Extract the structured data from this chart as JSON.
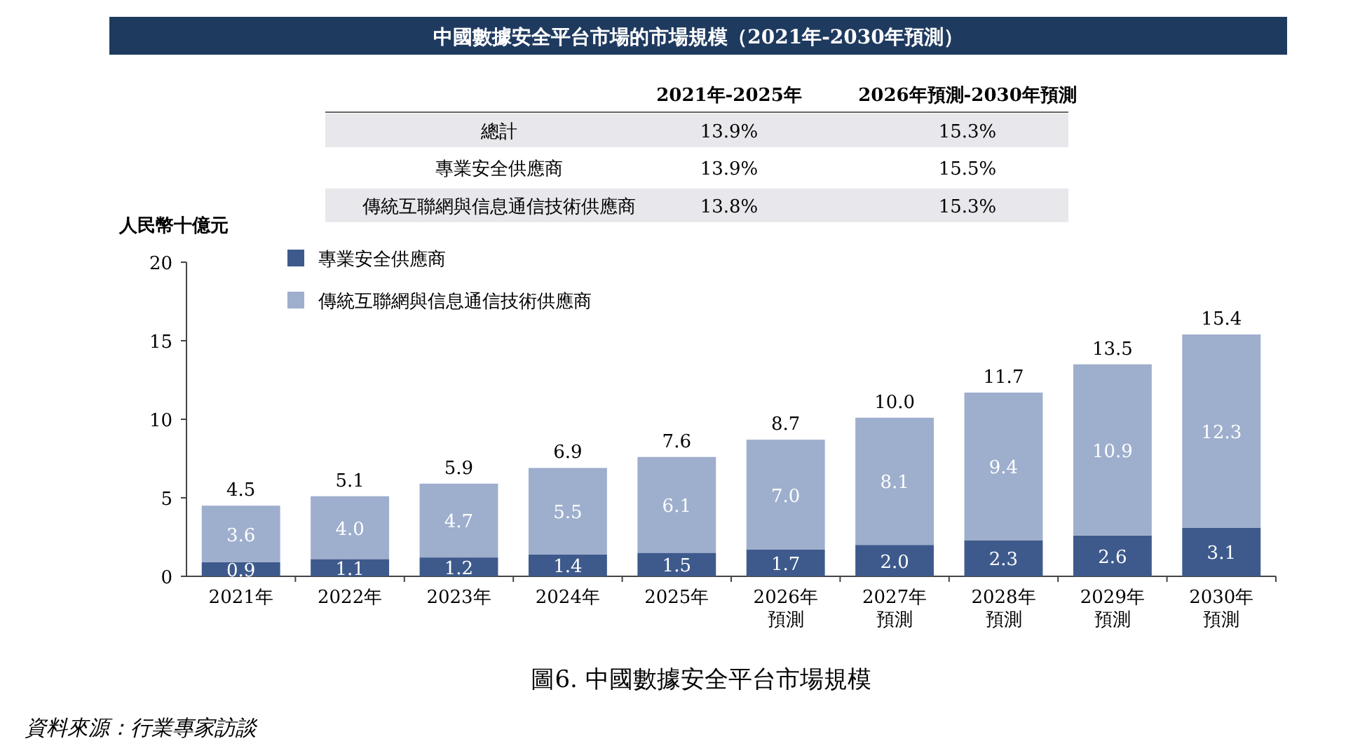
{
  "chart_data": {
    "type": "bar",
    "title": "中國數據安全平台市場的市場規模（2021年-2030年預測）",
    "ylabel": "人民幣十億元",
    "categories": [
      "2021年",
      "2022年",
      "2023年",
      "2024年",
      "2025年",
      "2026年預測",
      "2027年預測",
      "2028年預測",
      "2029年預測",
      "2030年預測"
    ],
    "series": [
      {
        "name": "專業安全供應商",
        "color": "#3e5a8c",
        "values": [
          0.9,
          1.1,
          1.2,
          1.4,
          1.5,
          1.7,
          2.0,
          2.3,
          2.6,
          3.1
        ],
        "value_labels": [
          "0.9",
          "1.1",
          "1.2",
          "1.4",
          "1.5",
          "1.7",
          "2.0",
          "2.3",
          "2.6",
          "3.1"
        ]
      },
      {
        "name": "傳統互聯網與信息通信技術供應商",
        "color": "#9eaecd",
        "values": [
          3.6,
          4.0,
          4.7,
          5.5,
          6.1,
          7.0,
          8.1,
          9.4,
          10.9,
          12.3
        ],
        "value_labels": [
          "3.6",
          "4.0",
          "4.7",
          "5.5",
          "6.1",
          "7.0",
          "8.1",
          "9.4",
          "10.9",
          "12.3"
        ]
      }
    ],
    "stacked": true,
    "totals": [
      "4.5",
      "5.1",
      "5.9",
      "6.9",
      "7.6",
      "8.7",
      "10.0",
      "11.7",
      "13.5",
      "15.4"
    ],
    "ylim": [
      0,
      20
    ],
    "yticks": [
      0,
      5,
      10,
      15,
      20
    ],
    "grid": false,
    "legend": "top left",
    "annotations": [
      "2021年-2025年",
      "2026年預測-2030年預測",
      "總計",
      "13.9%",
      "15.3%",
      "專業安全供應商",
      "13.9%",
      "15.5%",
      "傳統互聯網與信息通信技術供應商",
      "13.8%",
      "15.3%",
      "圖6. 中國數據安全平台市場規模",
      "資料來源：行業專家訪談"
    ]
  }
}
